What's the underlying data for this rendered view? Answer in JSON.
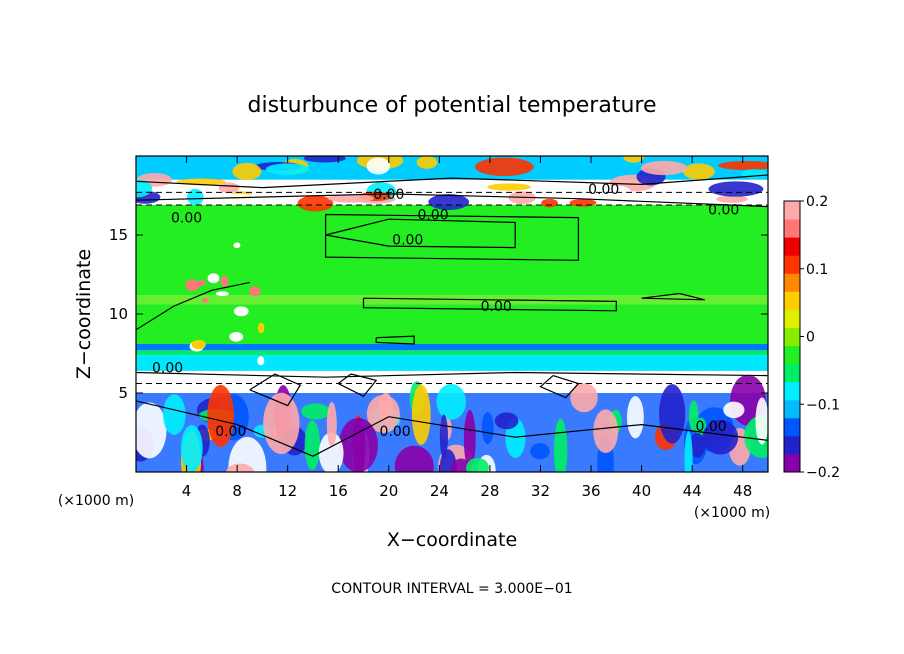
{
  "chart_data": {
    "type": "heatmap",
    "title": "disturbunce of potential temperature",
    "xlabel": "X−coordinate",
    "ylabel": "Z−coordinate",
    "x_unit_left": "(×1000 m)",
    "x_unit_right": "(×1000 m)",
    "xlim": [
      0,
      50
    ],
    "ylim": [
      0,
      20
    ],
    "x_ticks": [
      4,
      8,
      12,
      16,
      20,
      24,
      28,
      32,
      36,
      40,
      44,
      48
    ],
    "x_tick_labels": [
      "4",
      "8",
      "12",
      "16",
      "20",
      "24",
      "28",
      "32",
      "36",
      "40",
      "44",
      "48"
    ],
    "y_ticks": [
      5,
      10,
      15
    ],
    "y_tick_labels": [
      "5",
      "10",
      "15"
    ],
    "colorbar": {
      "range": [
        -0.2,
        0.2
      ],
      "ticks": [
        0.2,
        0.1,
        0,
        -0.1,
        -0.2
      ],
      "tick_labels": [
        "0.2",
        "0.1",
        "0",
        "−0.1",
        "−0.2"
      ],
      "colors": [
        "#8800aa",
        "#2222cc",
        "#0055ff",
        "#00bbff",
        "#00eeff",
        "#00ee66",
        "#22ee22",
        "#88ee00",
        "#ddee00",
        "#ffcc00",
        "#ff8800",
        "#ff3300",
        "#ee0000",
        "#ff7777",
        "#ffaaaa"
      ]
    },
    "contour_labels": [
      {
        "text": "0.00",
        "x": 20,
        "y": 17.6
      },
      {
        "text": "0.00",
        "x": 37,
        "y": 17.9
      },
      {
        "text": "0.00",
        "x": 46.5,
        "y": 16.6
      },
      {
        "text": "0.00",
        "x": 4,
        "y": 16.1
      },
      {
        "text": "0.00",
        "x": 23.5,
        "y": 16.3
      },
      {
        "text": "0.00",
        "x": 21.5,
        "y": 14.7
      },
      {
        "text": "0.00",
        "x": 28.5,
        "y": 10.5
      },
      {
        "text": "0.00",
        "x": 2.5,
        "y": 6.6
      },
      {
        "text": "0.00",
        "x": 7.5,
        "y": 2.6
      },
      {
        "text": "0.00",
        "x": 20.5,
        "y": 2.6
      },
      {
        "text": "0.00",
        "x": 45.5,
        "y": 2.9
      }
    ],
    "bands": [
      {
        "z0": 0,
        "z1": 5,
        "color": "#3a7aff"
      },
      {
        "z0": 5,
        "z1": 6.4,
        "color": "#ffffff"
      },
      {
        "z0": 6.4,
        "z1": 7.4,
        "color": "#00e8ff"
      },
      {
        "z0": 7.4,
        "z1": 7.7,
        "color": "#00ee66"
      },
      {
        "z0": 7.7,
        "z1": 8.1,
        "color": "#0077ff"
      },
      {
        "z0": 8.1,
        "z1": 10.6,
        "color": "#22ee22"
      },
      {
        "z0": 10.6,
        "z1": 11.2,
        "color": "#66ee33"
      },
      {
        "z0": 11.2,
        "z1": 16.9,
        "color": "#22ee22"
      },
      {
        "z0": 16.9,
        "z1": 18.5,
        "color": "#ffffff"
      },
      {
        "z0": 18.5,
        "z1": 20,
        "color": "#00ccff"
      }
    ],
    "footer": "CONTOUR INTERVAL = 3.000E−01"
  }
}
